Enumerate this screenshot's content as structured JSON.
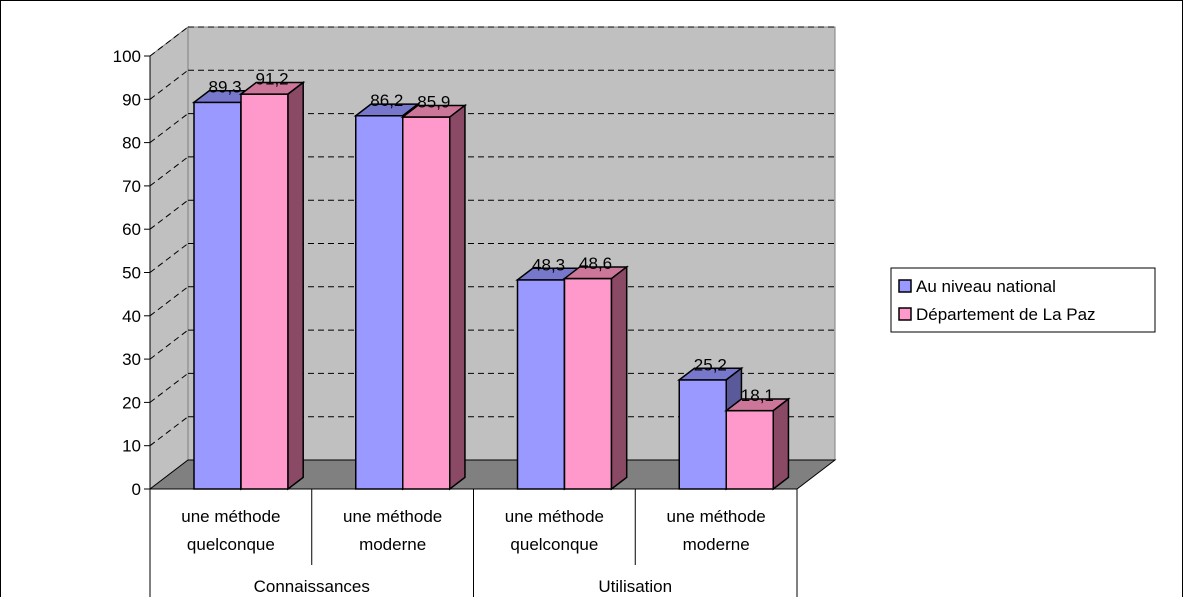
{
  "chart_data": {
    "type": "bar",
    "style": "3d-clustered-column",
    "title": "",
    "xlabel": "",
    "ylabel": "",
    "ylim": [
      0,
      100
    ],
    "yticks": [
      0,
      10,
      20,
      30,
      40,
      50,
      60,
      70,
      80,
      90,
      100
    ],
    "grid": "horizontal-dashed",
    "legend_position": "right",
    "groups": [
      {
        "label": "Connaissances",
        "categories": [
          0,
          1
        ]
      },
      {
        "label": "Utilisation",
        "categories": [
          2,
          3
        ]
      }
    ],
    "categories": [
      {
        "line1": "une méthode",
        "line2": "quelconque"
      },
      {
        "line1": "une méthode",
        "line2": "moderne"
      },
      {
        "line1": "une méthode",
        "line2": "quelconque"
      },
      {
        "line1": "une méthode",
        "line2": "moderne"
      }
    ],
    "series": [
      {
        "name": "Au niveau national",
        "color": "#9999FF",
        "values": [
          89.3,
          86.2,
          48.3,
          25.2
        ],
        "labels": [
          "89,3",
          "86,2",
          "48,3",
          "25,2"
        ]
      },
      {
        "name": "Département de La Paz",
        "color": "#FF99CC",
        "values": [
          91.2,
          85.9,
          48.6,
          18.1
        ],
        "labels": [
          "91,2",
          "85,9",
          "48,6",
          "18,1"
        ]
      }
    ],
    "colors": {
      "wall": "#C0C0C0",
      "floor": "#808080",
      "side_series_0": "#5A5A9A",
      "side_series_1": "#8A4A66"
    }
  }
}
